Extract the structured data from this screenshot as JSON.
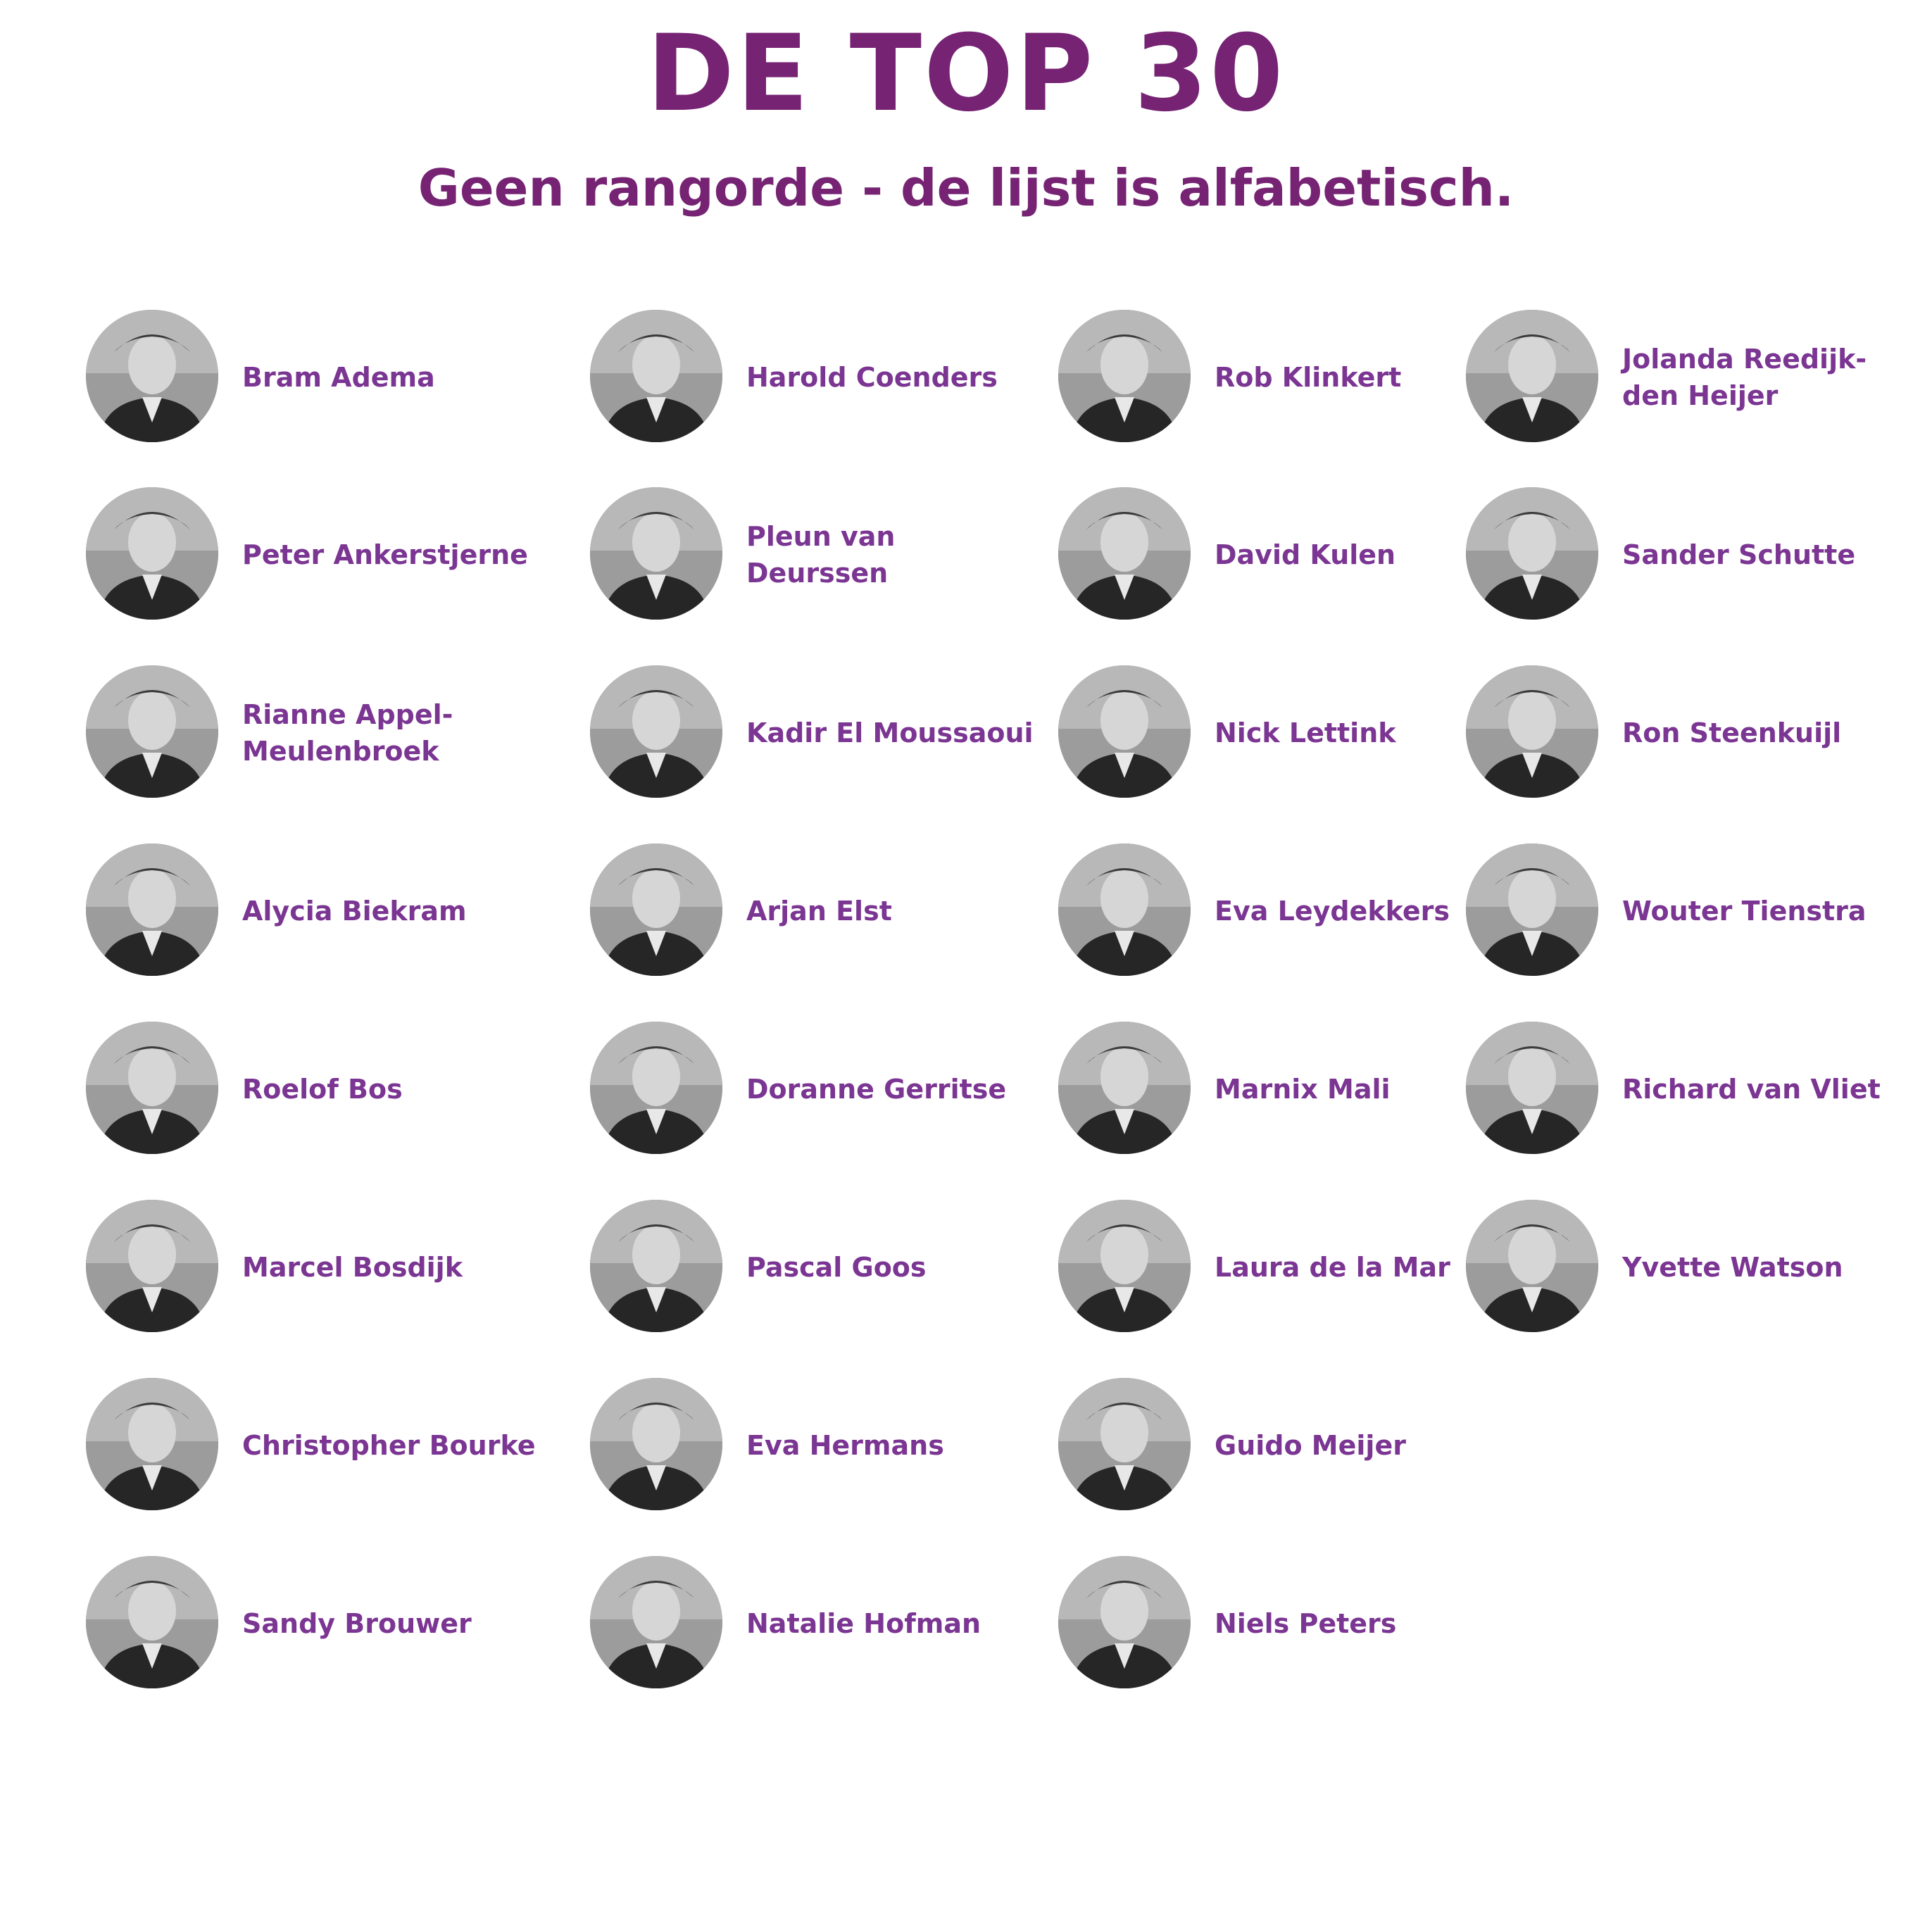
{
  "header": {
    "title": "DE TOP 30",
    "subtitle": "Geen rangorde - de lijst is alfabetisch."
  },
  "colors": {
    "title": "#762374",
    "name": "#7b3592"
  },
  "people": [
    {
      "name": "Bram Adema"
    },
    {
      "name": "Peter Ankerstjerne"
    },
    {
      "name": "Rianne Appel-\nMeulenbroek"
    },
    {
      "name": "Alycia Biekram"
    },
    {
      "name": "Roelof Bos"
    },
    {
      "name": "Marcel Bosdijk"
    },
    {
      "name": "Christopher Bourke"
    },
    {
      "name": "Sandy Brouwer"
    },
    {
      "name": "Harold Coenders"
    },
    {
      "name": "Pleun van Deurssen"
    },
    {
      "name": "Kadir El Moussaoui"
    },
    {
      "name": "Arjan Elst"
    },
    {
      "name": "Doranne Gerritse"
    },
    {
      "name": "Pascal Goos"
    },
    {
      "name": "Eva Hermans"
    },
    {
      "name": "Natalie Hofman"
    },
    {
      "name": "Rob Klinkert"
    },
    {
      "name": "David Kulen"
    },
    {
      "name": "Nick Lettink"
    },
    {
      "name": "Eva Leydekkers"
    },
    {
      "name": "Marnix Mali"
    },
    {
      "name": "Laura de la Mar"
    },
    {
      "name": "Guido Meijer"
    },
    {
      "name": "Niels Peters"
    },
    {
      "name": "Jolanda Reedijk-\nden Heijer"
    },
    {
      "name": "Sander Schutte"
    },
    {
      "name": "Ron Steenkuijl"
    },
    {
      "name": "Wouter Tienstra"
    },
    {
      "name": "Richard van Vliet"
    },
    {
      "name": "Yvette Watson"
    }
  ]
}
